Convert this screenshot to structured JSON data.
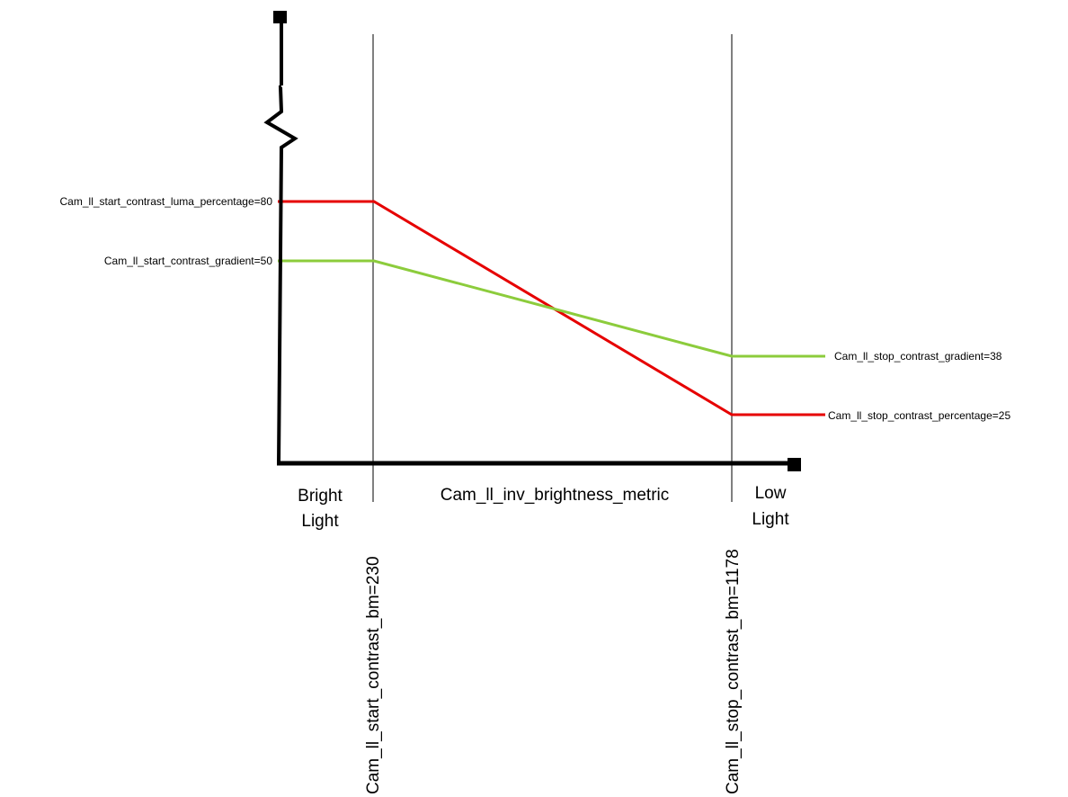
{
  "diagram": {
    "y_labels": {
      "start_luma": "Cam_ll_start_contrast_luma_percentage=80",
      "start_gradient": "Cam_ll_start_contrast_gradient=50"
    },
    "right_labels": {
      "stop_gradient": "Cam_ll_stop_contrast_gradient=38",
      "stop_percentage": "Cam_ll_stop_contrast_percentage=25"
    },
    "x_axis_label": "Cam_ll_inv_brightness_metric",
    "regions": {
      "bright": [
        "Bright",
        "Light"
      ],
      "low": [
        "Low",
        "Light"
      ]
    },
    "thresholds": {
      "start_bm": "Cam_ll_start_contrast_bm=230",
      "stop_bm": "Cam_ll_stop_contrast_bm=1178"
    },
    "series": [
      {
        "key": "luma_percentage",
        "color": "#e60000",
        "values": {
          "start": 80,
          "stop": 25
        }
      },
      {
        "key": "gradient",
        "color": "#8ccc3c",
        "values": {
          "start": 50,
          "stop": 38
        }
      }
    ],
    "colors": {
      "axis": "#000000",
      "guide": "#000000"
    }
  }
}
